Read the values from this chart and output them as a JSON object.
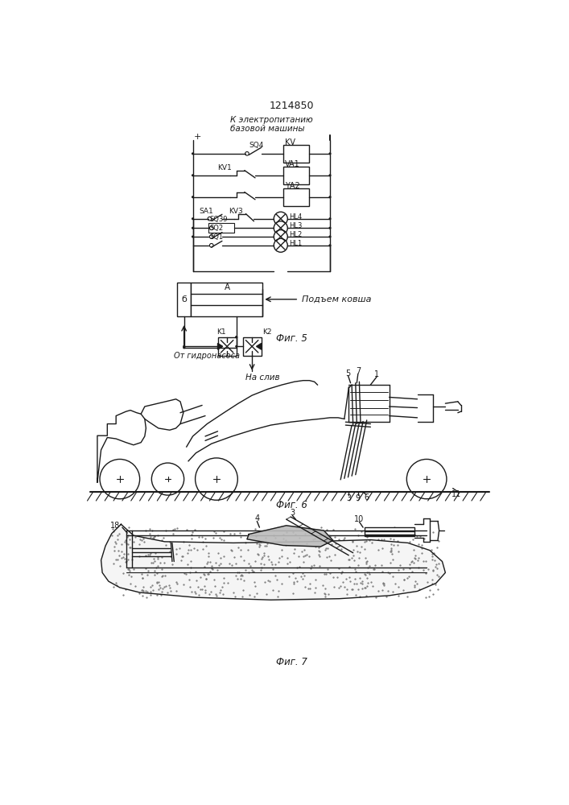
{
  "title": "1214850",
  "bg_color": "#ffffff",
  "line_color": "#1a1a1a",
  "fig_width": 7.07,
  "fig_height": 10.0,
  "dpi": 100,
  "text_color": "#1a1a1a",
  "label_elec_top": "К электропитанию",
  "label_elec_bot": "базовой машины",
  "label_SQ4": "SQ4",
  "label_KV": "KV",
  "label_KV1": "KV1",
  "label_VA1": "VA1",
  "label_YA2": "YА2",
  "label_SA1": "SA1",
  "label_KV3": "KV3",
  "label_HL4": "HL4",
  "label_SQ39": "SQ39",
  "label_HL3": "HL3",
  "label_SQ2": "SQ2",
  "label_HL2": "HL2",
  "label_SQ1": "SQ1",
  "label_HL1": "HL1",
  "label_A": "A",
  "label_B": "б",
  "label_podjem": "Подъем ковша",
  "label_K1": "K1",
  "label_K2": "K2",
  "label_na_sliv": "На слив",
  "label_ot_gidro": "От гидронасоса",
  "label_fig5": "Фиг. 5",
  "label_fig6": "Фиг. 6",
  "label_fig7": "Фиг. 7",
  "num_5": "5",
  "num_7": "7",
  "num_1": "1",
  "num_3a": "3",
  "num_9": "9",
  "num_6": "6",
  "num_11": "11",
  "num_3b": "3",
  "num_4": "4",
  "num_10": "10",
  "num_18": "18"
}
